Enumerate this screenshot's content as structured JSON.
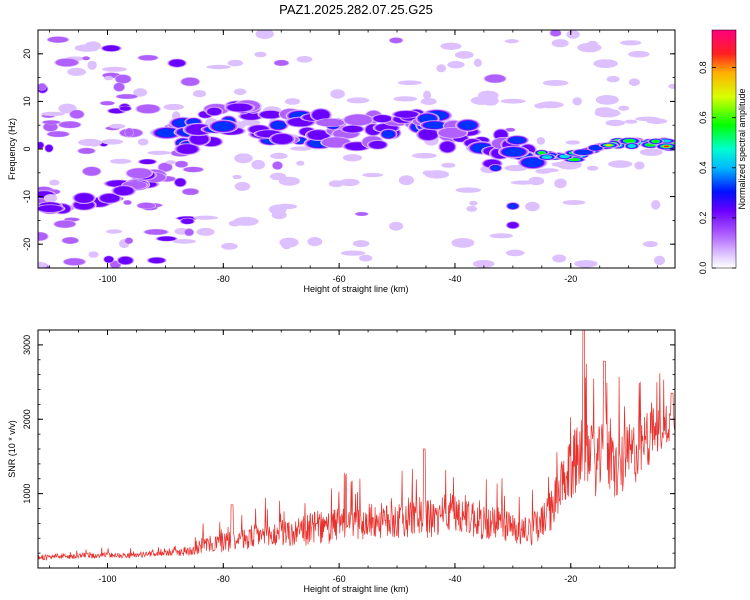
{
  "title": "PAZ1.2025.282.07.25.G25",
  "chart_data": [
    {
      "type": "heatmap",
      "xlabel": "Height of straight line (km)",
      "ylabel": "Frequency (Hz)",
      "xlim": [
        -112,
        -2
      ],
      "ylim": [
        -25,
        25
      ],
      "xticks": [
        -100,
        -80,
        -60,
        -40,
        -20
      ],
      "yticks": [
        -20,
        -10,
        0,
        10,
        20
      ],
      "colorbar": {
        "label": "Normalized spectral amplitude",
        "range": [
          0,
          0.95
        ],
        "ticks": [
          0.0,
          0.2,
          0.4,
          0.6,
          0.8
        ]
      },
      "ridge": [
        {
          "x": -88,
          "y": 2,
          "a": 0.4
        },
        {
          "x": -84,
          "y": 5,
          "a": 0.45
        },
        {
          "x": -80,
          "y": 5,
          "a": 0.4
        },
        {
          "x": -76,
          "y": 6,
          "a": 0.35
        },
        {
          "x": -72,
          "y": 4,
          "a": 0.45
        },
        {
          "x": -68,
          "y": 5,
          "a": 0.4
        },
        {
          "x": -64,
          "y": 4,
          "a": 0.35
        },
        {
          "x": -60,
          "y": 3,
          "a": 0.35
        },
        {
          "x": -56,
          "y": 4,
          "a": 0.3
        },
        {
          "x": -52,
          "y": 3,
          "a": 0.35
        },
        {
          "x": -48,
          "y": 4,
          "a": 0.4
        },
        {
          "x": -44,
          "y": 5,
          "a": 0.4
        },
        {
          "x": -40,
          "y": 3,
          "a": 0.35
        },
        {
          "x": -36,
          "y": 3,
          "a": 0.45
        },
        {
          "x": -32,
          "y": 0,
          "a": 0.35
        },
        {
          "x": -28,
          "y": -1,
          "a": 0.45
        },
        {
          "x": -24,
          "y": -1.5,
          "a": 0.7
        },
        {
          "x": -20,
          "y": -1.5,
          "a": 0.75
        },
        {
          "x": -16,
          "y": 0,
          "a": 0.65
        },
        {
          "x": -12,
          "y": 1.5,
          "a": 0.85
        },
        {
          "x": -8,
          "y": 1,
          "a": 0.7
        },
        {
          "x": -4,
          "y": 1,
          "a": 0.95
        }
      ],
      "secondary_branch": [
        {
          "x": -108,
          "y": -12,
          "a": 0.35
        },
        {
          "x": -102,
          "y": -11,
          "a": 0.35
        },
        {
          "x": -96,
          "y": -8,
          "a": 0.3
        },
        {
          "x": -92,
          "y": -5,
          "a": 0.3
        }
      ]
    },
    {
      "type": "line",
      "xlabel": "Height of straight line (km)",
      "ylabel": "SNR (10 * v/v)",
      "xlim": [
        -112,
        -2
      ],
      "ylim": [
        0,
        3200
      ],
      "xticks": [
        -100,
        -80,
        -60,
        -40,
        -20
      ],
      "yticks": [
        1000,
        2000,
        3000
      ],
      "color": "#e8302c",
      "series": [
        {
          "name": "SNR",
          "x": [
            -112,
            -110,
            -108,
            -106,
            -104,
            -102,
            -100,
            -98,
            -96,
            -94,
            -92,
            -90,
            -88,
            -86,
            -84,
            -82,
            -80,
            -78,
            -76,
            -74,
            -72,
            -70,
            -68,
            -66,
            -64,
            -62,
            -60,
            -58,
            -56,
            -54,
            -52,
            -50,
            -48,
            -46,
            -44,
            -42,
            -40,
            -38,
            -36,
            -34,
            -32,
            -30,
            -28,
            -26,
            -24,
            -22,
            -20,
            -18,
            -16,
            -14,
            -12,
            -10,
            -8,
            -6,
            -4,
            -2
          ],
          "values": [
            150,
            140,
            160,
            150,
            170,
            160,
            180,
            170,
            170,
            180,
            190,
            200,
            210,
            230,
            300,
            320,
            350,
            400,
            380,
            450,
            420,
            480,
            450,
            500,
            550,
            520,
            600,
            650,
            600,
            650,
            620,
            650,
            680,
            700,
            650,
            700,
            750,
            700,
            650,
            600,
            600,
            550,
            500,
            550,
            700,
            1000,
            1300,
            1700,
            1400,
            1500,
            1300,
            1500,
            1600,
            1800,
            1900,
            2000
          ],
          "variability": [
            60,
            60,
            60,
            60,
            60,
            60,
            60,
            60,
            60,
            60,
            60,
            60,
            80,
            120,
            180,
            200,
            250,
            280,
            260,
            300,
            300,
            320,
            320,
            340,
            380,
            360,
            400,
            420,
            400,
            420,
            400,
            430,
            450,
            460,
            440,
            470,
            500,
            470,
            450,
            420,
            420,
            380,
            350,
            380,
            450,
            600,
            700,
            900,
            750,
            800,
            700,
            750,
            700,
            600,
            500,
            400
          ]
        }
      ]
    }
  ]
}
